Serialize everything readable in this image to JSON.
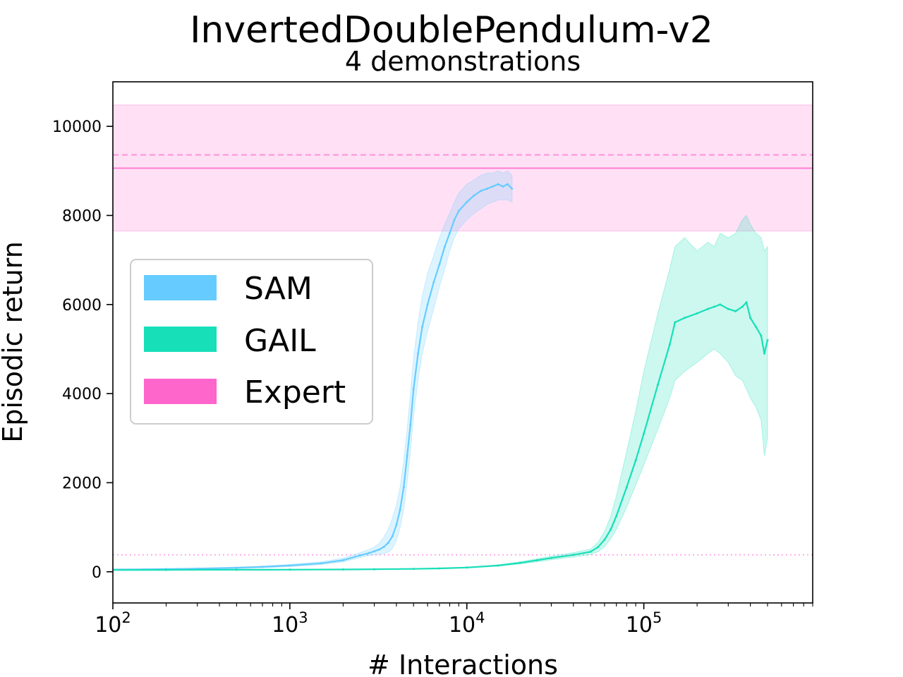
{
  "chart_data": {
    "type": "line",
    "title": "InvertedDoublePendulum-v2",
    "subtitle": "4 demonstrations",
    "xlabel": "# Interactions",
    "ylabel": "Episodic return",
    "xscale": "log",
    "xlim": [
      100,
      900000
    ],
    "ylim": [
      -700,
      11000
    ],
    "grid": false,
    "x_ticks": [
      {
        "value": 100,
        "base": "10",
        "exp": "2"
      },
      {
        "value": 1000,
        "base": "10",
        "exp": "3"
      },
      {
        "value": 10000,
        "base": "10",
        "exp": "4"
      },
      {
        "value": 100000,
        "base": "10",
        "exp": "5"
      }
    ],
    "y_ticks": [
      {
        "value": 0,
        "label": "0"
      },
      {
        "value": 2000,
        "label": "2000"
      },
      {
        "value": 4000,
        "label": "4000"
      },
      {
        "value": 6000,
        "label": "6000"
      },
      {
        "value": 8000,
        "label": "8000"
      },
      {
        "value": 10000,
        "label": "10000"
      }
    ],
    "legend": {
      "placement": "center-left",
      "entries": [
        {
          "label": "SAM",
          "color": "#66ccff"
        },
        {
          "label": "GAIL",
          "color": "#17dfb8"
        },
        {
          "label": "Expert",
          "color": "#ff66cc"
        }
      ]
    },
    "expert": {
      "color": "#ff66cc",
      "mean": 9060,
      "band": [
        7650,
        10480
      ],
      "dashed_line": 9360,
      "dotted_line": 380
    },
    "series": [
      {
        "name": "SAM",
        "color": "#66ccff",
        "x": [
          100,
          150,
          200,
          300,
          500,
          700,
          1000,
          1500,
          2000,
          2500,
          2800,
          3000,
          3200,
          3400,
          3600,
          3800,
          4000,
          4200,
          4400,
          4600,
          4800,
          5000,
          5300,
          5600,
          6000,
          6500,
          7000,
          7500,
          8000,
          8500,
          9000,
          10000,
          11000,
          12000,
          13000,
          14000,
          15000,
          16000,
          17000,
          18000
        ],
        "mean": [
          50,
          55,
          60,
          70,
          90,
          110,
          140,
          190,
          260,
          370,
          420,
          460,
          500,
          560,
          650,
          800,
          1050,
          1400,
          1900,
          2600,
          3300,
          4100,
          4900,
          5500,
          6000,
          6500,
          6900,
          7300,
          7600,
          7900,
          8100,
          8300,
          8450,
          8550,
          8600,
          8650,
          8700,
          8650,
          8700,
          8600
        ],
        "lower": [
          40,
          45,
          50,
          58,
          75,
          90,
          115,
          160,
          220,
          320,
          360,
          380,
          390,
          410,
          440,
          520,
          700,
          1000,
          1400,
          2000,
          2700,
          3500,
          4300,
          4900,
          5400,
          5900,
          6400,
          6800,
          7200,
          7500,
          7700,
          7900,
          8050,
          8150,
          8250,
          8300,
          8350,
          8350,
          8350,
          8300
        ],
        "upper": [
          60,
          65,
          72,
          82,
          105,
          130,
          165,
          225,
          305,
          430,
          500,
          560,
          640,
          780,
          960,
          1200,
          1500,
          1900,
          2500,
          3200,
          4000,
          4800,
          5600,
          6200,
          6700,
          7100,
          7500,
          7800,
          8050,
          8300,
          8500,
          8700,
          8800,
          8900,
          8950,
          8950,
          9000,
          8950,
          9000,
          8900
        ]
      },
      {
        "name": "GAIL",
        "color": "#17dfb8",
        "x": [
          100,
          200,
          500,
          1000,
          2000,
          3000,
          5000,
          7000,
          10000,
          15000,
          20000,
          25000,
          30000,
          40000,
          50000,
          55000,
          60000,
          65000,
          70000,
          80000,
          90000,
          100000,
          120000,
          140000,
          150000,
          170000,
          200000,
          230000,
          250000,
          270000,
          300000,
          330000,
          360000,
          380000,
          400000,
          430000,
          460000,
          480000,
          500000
        ],
        "mean": [
          40,
          42,
          45,
          48,
          52,
          56,
          65,
          75,
          95,
          140,
          200,
          260,
          310,
          380,
          450,
          550,
          720,
          950,
          1250,
          1900,
          2500,
          3100,
          4200,
          5100,
          5600,
          5700,
          5800,
          5900,
          5950,
          6000,
          5900,
          5850,
          5950,
          6050,
          5700,
          5500,
          5300,
          4900,
          5200
        ],
        "lower": [
          35,
          37,
          40,
          43,
          46,
          50,
          58,
          68,
          85,
          125,
          175,
          225,
          270,
          330,
          390,
          450,
          560,
          740,
          950,
          1450,
          1950,
          2400,
          3200,
          3900,
          4300,
          4500,
          4700,
          4900,
          5000,
          4900,
          4700,
          4400,
          4300,
          4100,
          3900,
          3700,
          3400,
          2600,
          3000
        ],
        "upper": [
          45,
          47,
          50,
          53,
          58,
          62,
          72,
          82,
          105,
          155,
          225,
          295,
          350,
          430,
          510,
          660,
          900,
          1250,
          1700,
          2700,
          3600,
          4500,
          5800,
          6800,
          7300,
          7500,
          7200,
          7400,
          7300,
          7600,
          7500,
          7600,
          7900,
          8000,
          7800,
          7600,
          7500,
          7200,
          7300
        ]
      }
    ]
  }
}
